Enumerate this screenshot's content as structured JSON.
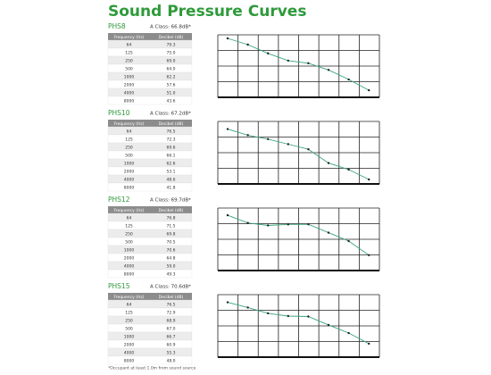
{
  "header": {
    "title": "Sound Pressure Curves"
  },
  "sections": [
    {
      "model": "PHS8",
      "a_class": "A Class: 66.8dB*",
      "table": {
        "columns": [
          "Frequency (Hz)",
          "Decibel (dB)"
        ],
        "rows": [
          [
            "64",
            "79.3"
          ],
          [
            "125",
            "75.0"
          ],
          [
            "250",
            "69.0"
          ],
          [
            "500",
            "64.0"
          ],
          [
            "1000",
            "62.2"
          ],
          [
            "2000",
            "57.6"
          ],
          [
            "4000",
            "51.0"
          ],
          [
            "8000",
            "43.6"
          ]
        ]
      }
    },
    {
      "model": "PHS10",
      "a_class": "A Class: 67.2dB*",
      "table": {
        "columns": [
          "Frequency (Hz)",
          "Decibel (dB)"
        ],
        "rows": [
          [
            "64",
            "76.5"
          ],
          [
            "125",
            "72.3"
          ],
          [
            "250",
            "69.6"
          ],
          [
            "500",
            "66.1"
          ],
          [
            "1000",
            "62.6"
          ],
          [
            "2000",
            "53.1"
          ],
          [
            "4000",
            "48.6"
          ],
          [
            "8000",
            "41.8"
          ]
        ]
      }
    },
    {
      "model": "PHS12",
      "a_class": "A Class: 69.7dB*",
      "table": {
        "columns": [
          "Frequency (Hz)",
          "Decibel (dB)"
        ],
        "rows": [
          [
            "64",
            "76.8"
          ],
          [
            "125",
            "71.5"
          ],
          [
            "250",
            "69.8"
          ],
          [
            "500",
            "70.5"
          ],
          [
            "1000",
            "70.6"
          ],
          [
            "2000",
            "64.8"
          ],
          [
            "4000",
            "59.0"
          ],
          [
            "8000",
            "49.3"
          ]
        ]
      }
    },
    {
      "model": "PHS15",
      "a_class": "A Class: 70.6dB*",
      "table": {
        "columns": [
          "Frequency (Hz)",
          "Decibel (dB)"
        ],
        "rows": [
          [
            "64",
            "76.5"
          ],
          [
            "125",
            "72.9"
          ],
          [
            "250",
            "68.9"
          ],
          [
            "500",
            "67.0"
          ],
          [
            "1000",
            "66.7"
          ],
          [
            "2000",
            "60.9"
          ],
          [
            "4000",
            "55.3"
          ],
          [
            "8000",
            "48.0"
          ]
        ]
      }
    }
  ],
  "footnote": "*Occupant at least 1.0m from sound source"
}
